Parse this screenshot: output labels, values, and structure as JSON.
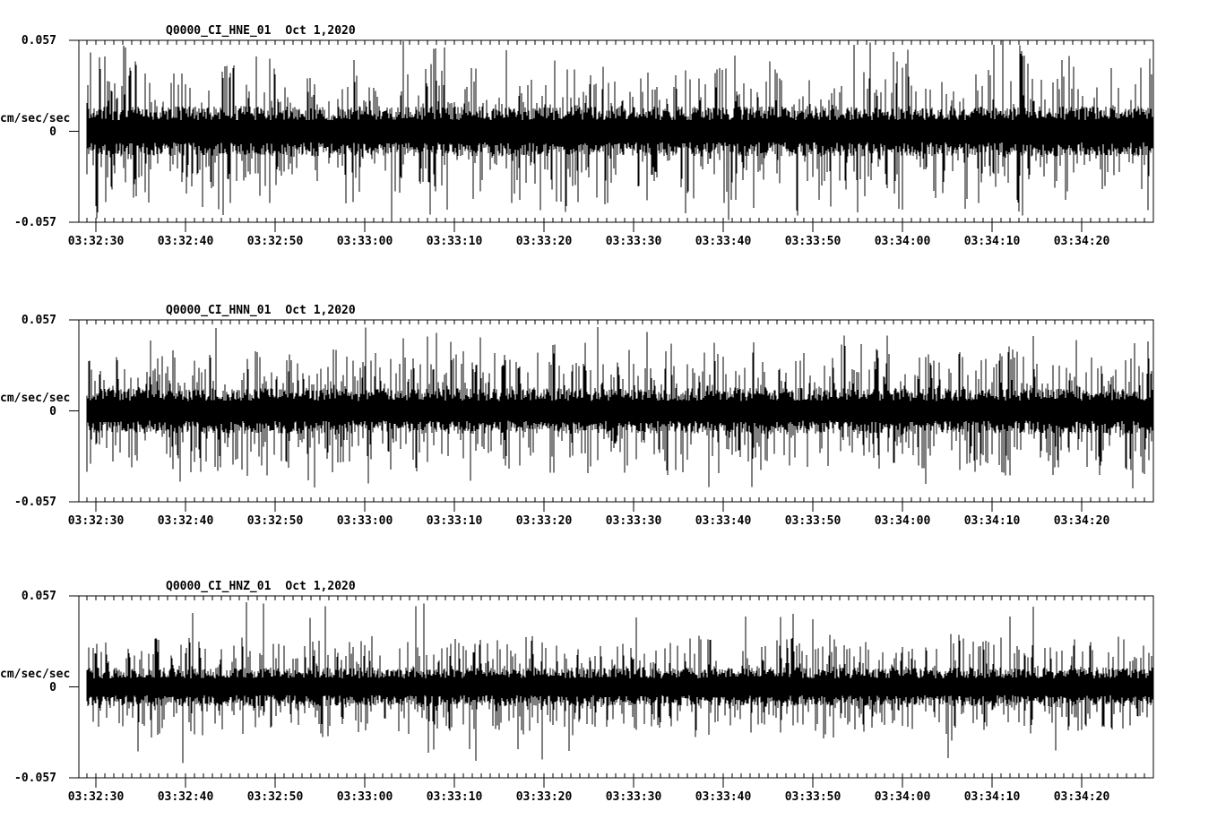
{
  "page": {
    "background": "#ffffff",
    "foreground": "#000000"
  },
  "chart_data": [
    {
      "type": "line",
      "subtype": "seismogram-trace",
      "title": "Q0000_CI_HNE_01",
      "date_label": "Oct 1,2020",
      "ylabel": "cm/sec/sec",
      "ytick_labels": [
        "0.057",
        "0",
        "-0.057"
      ],
      "ylim": [
        -0.057,
        0.057
      ],
      "xtick_labels": [
        "03:32:30",
        "03:32:40",
        "03:32:50",
        "03:33:00",
        "03:33:10",
        "03:33:20",
        "03:33:30",
        "03:33:40",
        "03:33:50",
        "03:34:00",
        "03:34:10",
        "03:34:20"
      ],
      "x_major_interval_sec": 10,
      "x_minor_interval_sec": 1,
      "trace_color": "#000000",
      "grid": false,
      "envelope_est": {
        "core_frac": 0.22,
        "typical_spike_frac": 0.72,
        "spike_prob": 0.28,
        "burst_depth": 0.3,
        "max_spike_frac": 1.0
      }
    },
    {
      "type": "line",
      "subtype": "seismogram-trace",
      "title": "Q0000_CI_HNN_01",
      "date_label": "Oct 1,2020",
      "ylabel": "cm/sec/sec",
      "ytick_labels": [
        "0.057",
        "0",
        "-0.057"
      ],
      "ylim": [
        -0.057,
        0.057
      ],
      "xtick_labels": [
        "03:32:30",
        "03:32:40",
        "03:32:50",
        "03:33:00",
        "03:33:10",
        "03:33:20",
        "03:33:30",
        "03:33:40",
        "03:33:50",
        "03:34:00",
        "03:34:10",
        "03:34:20"
      ],
      "x_major_interval_sec": 10,
      "x_minor_interval_sec": 1,
      "trace_color": "#000000",
      "grid": false,
      "envelope_est": {
        "core_frac": 0.2,
        "typical_spike_frac": 0.66,
        "spike_prob": 0.3,
        "burst_depth": 0.15,
        "max_spike_frac": 0.92
      }
    },
    {
      "type": "line",
      "subtype": "seismogram-trace",
      "title": "Q0000_CI_HNZ_01",
      "date_label": "Oct 1,2020",
      "ylabel": "cm/sec/sec",
      "ytick_labels": [
        "0.057",
        "0",
        "-0.057"
      ],
      "ylim": [
        -0.057,
        0.057
      ],
      "xtick_labels": [
        "03:32:30",
        "03:32:40",
        "03:32:50",
        "03:33:00",
        "03:33:10",
        "03:33:20",
        "03:33:30",
        "03:33:40",
        "03:33:50",
        "03:34:00",
        "03:34:10",
        "03:34:20"
      ],
      "x_major_interval_sec": 10,
      "x_minor_interval_sec": 1,
      "trace_color": "#000000",
      "grid": false,
      "envelope_est": {
        "core_frac": 0.17,
        "typical_spike_frac": 0.55,
        "spike_prob": 0.28,
        "burst_depth": 0.1,
        "max_spike_frac": 0.95
      }
    }
  ]
}
